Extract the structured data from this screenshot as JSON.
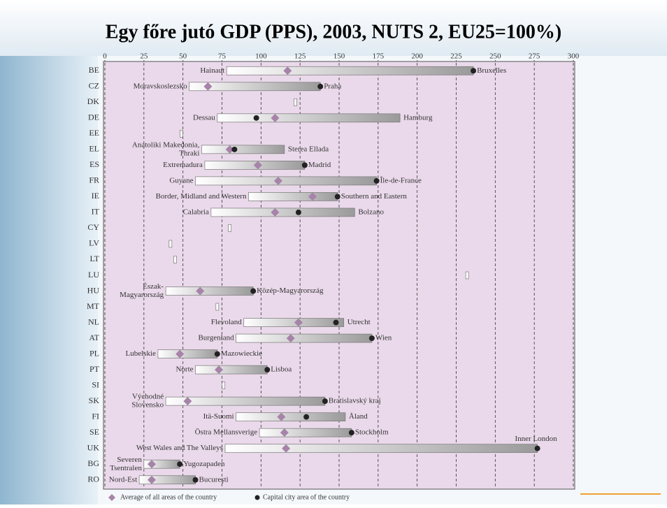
{
  "chart_data": {
    "type": "range",
    "title": "Egy főre jutó GDP (PPS), 2003, NUTS 2, EU25=100%)",
    "categories": [
      "BE",
      "CZ",
      "DK",
      "DE",
      "EE",
      "EL",
      "ES",
      "FR",
      "IE",
      "IT",
      "CY",
      "LV",
      "LT",
      "LU",
      "HU",
      "MT",
      "NL",
      "AT",
      "PL",
      "PT",
      "SI",
      "SK",
      "FI",
      "SE",
      "UK",
      "BG",
      "RO"
    ],
    "min": [
      78,
      54,
      122,
      72,
      49,
      62,
      64,
      58,
      92,
      68,
      80,
      42,
      45,
      232,
      39,
      72,
      89,
      84,
      34,
      58,
      76,
      39,
      84,
      99,
      77,
      25,
      22
    ],
    "max": [
      236,
      138,
      122,
      189,
      49,
      115,
      128,
      174,
      149,
      160,
      80,
      42,
      45,
      232,
      95,
      72,
      153,
      171,
      72,
      104,
      76,
      141,
      154,
      158,
      277,
      48,
      58
    ],
    "average": [
      117,
      66,
      null,
      109,
      null,
      80,
      98,
      111,
      133,
      109,
      null,
      null,
      null,
      null,
      61,
      null,
      124,
      119,
      48,
      73,
      null,
      53,
      113,
      115,
      116,
      30,
      30
    ],
    "capital": [
      236,
      138,
      null,
      97,
      null,
      83,
      128,
      174,
      149,
      124,
      null,
      null,
      null,
      null,
      95,
      null,
      148,
      171,
      72,
      104,
      null,
      141,
      129,
      158,
      277,
      48,
      58
    ],
    "min_labels": [
      "Hainaut",
      "Moravskoslezsko",
      null,
      "Dessau",
      null,
      [
        "Anatoliki Makedonia,",
        "Thraki"
      ],
      "Extremadura",
      "Guyane",
      "Border, Midland and Western",
      "Calabria",
      null,
      null,
      null,
      null,
      [
        "Észak-",
        "Magyarország"
      ],
      null,
      "Flevoland",
      "Burgenland",
      "Lubelskie",
      "Norte",
      null,
      [
        "Východné",
        "Slovensko"
      ],
      "Itä-Suomi",
      "Östra Mellansverige",
      "West Wales and The Valleys",
      [
        "Severen",
        "Tsentralen"
      ],
      "Nord-Est"
    ],
    "max_labels": [
      "Bruxelles",
      "Praha",
      null,
      "Hamburg",
      null,
      "Sterea Ellada",
      "Madrid",
      "Île-de-France",
      "Southern and Eastern",
      "Bolzano",
      null,
      null,
      null,
      null,
      "Közép-Magyarország",
      null,
      "Utrecht",
      "Wien",
      "Mazowieckie",
      "Lisboa",
      null,
      "Bratislavský kraj",
      "Åland",
      "Stockholm",
      "Inner London",
      "Yugozapaden",
      "Bucureşti"
    ],
    "xlim": [
      0,
      300
    ],
    "xticks": [
      0,
      25,
      50,
      75,
      100,
      125,
      150,
      175,
      200,
      225,
      250,
      275,
      300
    ],
    "grid": true,
    "colors": {
      "bar": "#9a9a9a",
      "average": "#a783a9",
      "capital": "#222222",
      "plot": "#ead9ea"
    },
    "legend": {
      "average": "Average of all areas of the country",
      "capital": "Capital city area of the country"
    }
  }
}
